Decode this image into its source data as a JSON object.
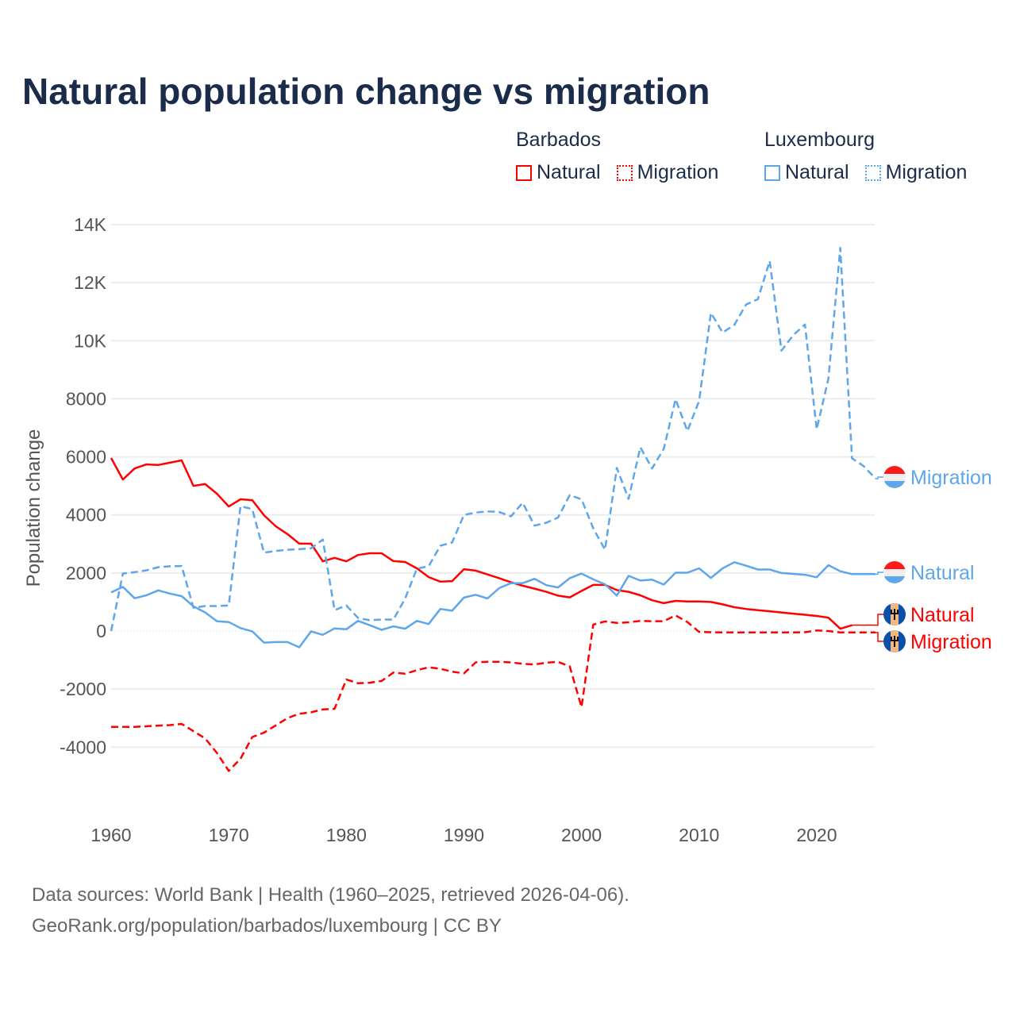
{
  "title": "Natural population change vs migration",
  "legend": {
    "groups": [
      {
        "name": "Barbados",
        "color": "#ff0000",
        "items": [
          "Natural",
          "Migration"
        ]
      },
      {
        "name": "Luxembourg",
        "color": "#5ea6ea",
        "items": [
          "Natural",
          "Migration"
        ]
      }
    ]
  },
  "footer": {
    "line1": "Data sources: World Bank | Health (1960–2025, retrieved 2026-04-06).",
    "line2": "GeoRank.org/population/barbados/luxembourg | CC BY"
  },
  "chart_data": {
    "type": "line",
    "title": "Natural population change vs migration",
    "xlabel": "",
    "ylabel": "Population change",
    "xlim": [
      1960,
      2025
    ],
    "ylim": [
      -5900,
      14000
    ],
    "x_ticks": [
      1960,
      1970,
      1980,
      1990,
      2000,
      2010,
      2020
    ],
    "x_tick_labels": [
      "1960",
      "1970",
      "1980",
      "1990",
      "2000",
      "2010",
      "2020"
    ],
    "y_ticks": [
      -4000,
      -2000,
      0,
      2000,
      4000,
      6000,
      8000,
      10000,
      12000,
      14000
    ],
    "y_tick_labels": [
      "-4000",
      "-2000",
      "0",
      "2000",
      "4000",
      "6000",
      "8000",
      "10K",
      "12K",
      "14K"
    ],
    "grid": true,
    "legend_position": "top-right",
    "x_start": 1960,
    "series": [
      {
        "name": "Barbados Natural",
        "end_label": "Natural",
        "country": "Barbados",
        "color": "#ff0000",
        "dash": false,
        "values": [
          5960,
          5220,
          5600,
          5740,
          5720,
          5800,
          5880,
          5000,
          5060,
          4730,
          4290,
          4540,
          4510,
          3990,
          3610,
          3340,
          3010,
          3010,
          2400,
          2520,
          2400,
          2620,
          2680,
          2680,
          2410,
          2380,
          2160,
          1860,
          1700,
          1720,
          2130,
          2080,
          1950,
          1820,
          1680,
          1560,
          1460,
          1350,
          1220,
          1160,
          1380,
          1590,
          1590,
          1410,
          1350,
          1230,
          1060,
          960,
          1040,
          1020,
          1020,
          1000,
          920,
          820,
          760,
          720,
          680,
          640,
          600,
          560,
          520,
          460,
          80,
          200
        ]
      },
      {
        "name": "Barbados Migration",
        "end_label": "Migration",
        "country": "Barbados",
        "color": "#ff0000",
        "dash": true,
        "values": [
          -3300,
          -3300,
          -3300,
          -3280,
          -3260,
          -3240,
          -3200,
          -3450,
          -3700,
          -4200,
          -4820,
          -4400,
          -3650,
          -3500,
          -3250,
          -3000,
          -2850,
          -2800,
          -2700,
          -2680,
          -1670,
          -1800,
          -1780,
          -1720,
          -1430,
          -1470,
          -1350,
          -1250,
          -1300,
          -1400,
          -1460,
          -1080,
          -1060,
          -1060,
          -1080,
          -1130,
          -1150,
          -1090,
          -1060,
          -1220,
          -2620,
          220,
          330,
          280,
          300,
          350,
          340,
          340,
          540,
          310,
          -30,
          -40,
          -50,
          -50,
          -50,
          -50,
          -50,
          -50,
          -50,
          -40,
          20,
          0,
          -50,
          -50,
          -50,
          -50
        ]
      },
      {
        "name": "Luxembourg Natural",
        "end_label": "Natural",
        "country": "Luxembourg",
        "color": "#5ea6ea",
        "dash": false,
        "values": [
          1330,
          1520,
          1130,
          1230,
          1400,
          1290,
          1200,
          850,
          640,
          340,
          310,
          100,
          -10,
          -400,
          -380,
          -380,
          -560,
          -10,
          -130,
          90,
          60,
          350,
          200,
          40,
          160,
          80,
          350,
          240,
          760,
          700,
          1150,
          1250,
          1120,
          1480,
          1650,
          1650,
          1800,
          1580,
          1500,
          1820,
          1980,
          1780,
          1610,
          1220,
          1900,
          1740,
          1770,
          1600,
          2010,
          2010,
          2160,
          1830,
          2160,
          2370,
          2250,
          2120,
          2120,
          2000,
          1970,
          1940,
          1850,
          2270,
          2060,
          1960,
          1960,
          1960
        ]
      },
      {
        "name": "Luxembourg Migration",
        "end_label": "Migration",
        "country": "Luxembourg",
        "color": "#5ea6ea",
        "dash": true,
        "values": [
          0,
          1980,
          2030,
          2090,
          2200,
          2230,
          2240,
          800,
          860,
          860,
          880,
          4300,
          4200,
          2700,
          2760,
          2800,
          2820,
          2850,
          3150,
          720,
          880,
          450,
          370,
          400,
          390,
          1120,
          2150,
          2230,
          2940,
          3050,
          4000,
          4080,
          4120,
          4100,
          3950,
          4420,
          3630,
          3730,
          3910,
          4680,
          4540,
          3540,
          2800,
          5620,
          4550,
          6330,
          5600,
          6280,
          7990,
          6890,
          7930,
          10960,
          10280,
          10550,
          11250,
          11430,
          12750,
          9660,
          10190,
          10560,
          6950,
          8700,
          13200,
          5950,
          5680,
          5250
        ]
      }
    ]
  }
}
